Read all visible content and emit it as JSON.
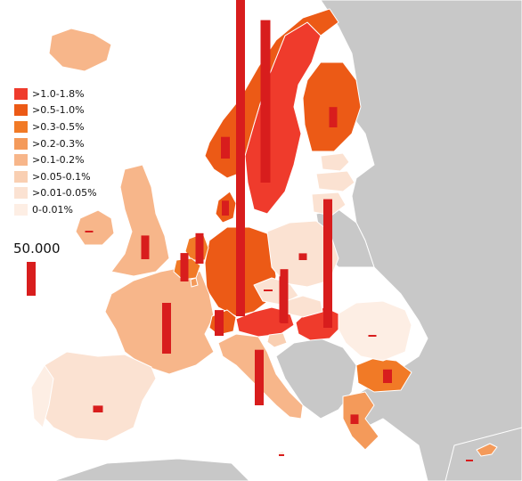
{
  "colors": {
    "sea": "#ffffff",
    "non_data_land": "#c8c8c8",
    "bar": "#d81d1d"
  },
  "legend": {
    "items": [
      {
        "label": ">1.0-1.8%",
        "color": "#ef3b2c"
      },
      {
        "label": ">0.5-1.0%",
        "color": "#ec5a16"
      },
      {
        "label": ">0.3-0.5%",
        "color": "#f17a26"
      },
      {
        "label": ">0.2-0.3%",
        "color": "#f49a5a"
      },
      {
        "label": ">0.1-0.2%",
        "color": "#f7b68a"
      },
      {
        "label": ">0.05-0.1%",
        "color": "#f9cfb2"
      },
      {
        "label": ">0.01-0.05%",
        "color": "#fbe2d2"
      },
      {
        "label": "0-0.01%",
        "color": "#fdeee4"
      }
    ]
  },
  "scale": {
    "label": "50.000",
    "value": 50000
  },
  "countries": [
    {
      "name": "Sweden",
      "class": 0,
      "bar_value": 240000
    },
    {
      "name": "Germany",
      "class": 1,
      "bar_value": 470000
    },
    {
      "name": "Norway",
      "class": 1,
      "bar_value": 32000
    },
    {
      "name": "Finland",
      "class": 1,
      "bar_value": 30000
    },
    {
      "name": "Denmark",
      "class": 1,
      "bar_value": 22000
    },
    {
      "name": "Austria",
      "class": 0,
      "bar_value": 68000
    },
    {
      "name": "Hungary",
      "class": 0,
      "bar_value": 190000
    },
    {
      "name": "Italy",
      "class": 4,
      "bar_value": 82000
    },
    {
      "name": "France",
      "class": 4,
      "bar_value": 75000
    },
    {
      "name": "Switzerland",
      "class": 1,
      "bar_value": 38000
    },
    {
      "name": "Netherlands",
      "class": 2,
      "bar_value": 45000
    },
    {
      "name": "Belgium",
      "class": 2,
      "bar_value": 42000
    },
    {
      "name": "United Kingdom",
      "class": 4,
      "bar_value": 35000
    },
    {
      "name": "Czech Republic",
      "class": 6,
      "bar_value": 1000
    },
    {
      "name": "Slovakia",
      "class": 6,
      "bar_value": 80000
    },
    {
      "name": "Poland",
      "class": 6,
      "bar_value": 10000
    },
    {
      "name": "Spain",
      "class": 6,
      "bar_value": 10000
    },
    {
      "name": "Bulgaria",
      "class": 2,
      "bar_value": 20000
    },
    {
      "name": "Greece",
      "class": 3,
      "bar_value": 14000
    },
    {
      "name": "Romania",
      "class": 7,
      "bar_value": 1000
    },
    {
      "name": "Ireland",
      "class": 4,
      "bar_value": 1000
    },
    {
      "name": "Iceland",
      "class": 4,
      "bar_value": 0
    },
    {
      "name": "Portugal",
      "class": 7,
      "bar_value": 0
    },
    {
      "name": "Cyprus",
      "class": 3,
      "bar_value": 1000
    },
    {
      "name": "Malta",
      "class": 7,
      "bar_value": 1000
    },
    {
      "name": "Slovenia",
      "class": 5,
      "bar_value": 0
    },
    {
      "name": "Luxembourg",
      "class": 3,
      "bar_value": 0
    },
    {
      "name": "Estonia",
      "class": 6,
      "bar_value": 0
    },
    {
      "name": "Latvia",
      "class": 6,
      "bar_value": 0
    },
    {
      "name": "Lithuania",
      "class": 6,
      "bar_value": 0
    }
  ]
}
